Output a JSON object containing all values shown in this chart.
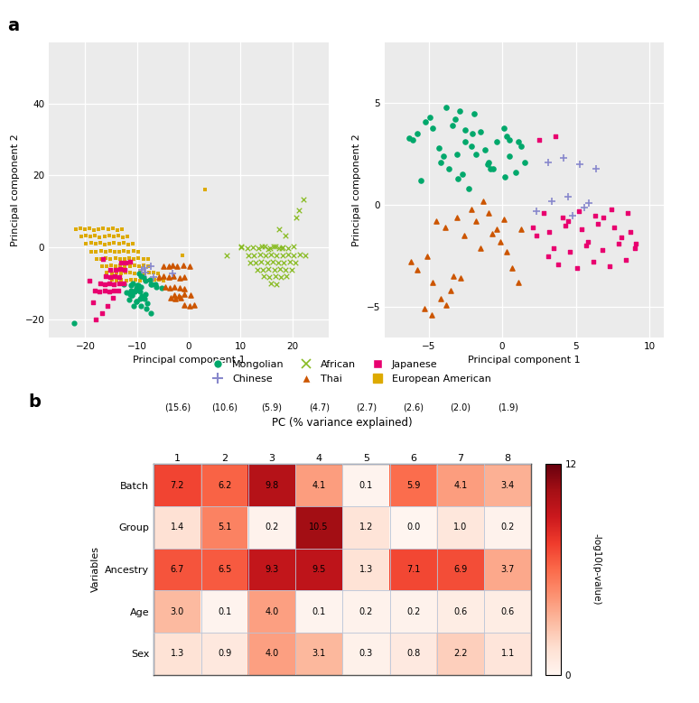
{
  "panel_a_left": {
    "mongolian": {
      "x": [
        -12.5,
        -11.2,
        -10.8,
        -10.1,
        -9.7,
        -9.2,
        -10.5,
        -11.3,
        -12.1,
        -11.0,
        -10.3,
        -9.1,
        -8.5,
        -10.2,
        -9.4,
        -8.1,
        -10.7,
        -11.5,
        -10.1,
        -9.3,
        -8.2,
        -7.4,
        -10.9,
        -11.1,
        -10.0,
        -9.5,
        -8.3,
        -7.1,
        -9.2,
        -8.4,
        -7.3,
        -6.2,
        -9.6,
        -8.7,
        -7.5,
        -6.4,
        -5.3,
        -22.1,
        -10.0,
        -9.1
      ],
      "y": [
        -10.2,
        -10.5,
        -10.1,
        -11.3,
        -10.4,
        -11.1,
        -12.2,
        -13.1,
        -12.4,
        -13.2,
        -12.1,
        -13.4,
        -14.2,
        -15.1,
        -14.3,
        -15.4,
        -16.2,
        -14.5,
        -15.1,
        -16.3,
        -17.1,
        -18.2,
        -13.2,
        -12.1,
        -11.4,
        -12.3,
        -13.1,
        -10.2,
        -8.1,
        -9.3,
        -10.2,
        -11.1,
        -7.2,
        -8.3,
        -9.1,
        -10.3,
        -11.2,
        -21.0,
        -10.4,
        -14.1
      ]
    },
    "thai": {
      "x": [
        -4.8,
        -3.9,
        -3.1,
        -2.2,
        -1.1,
        0.1,
        -5.7,
        -4.9,
        -3.8,
        -2.9,
        -1.8,
        -0.9,
        -4.6,
        -3.7,
        -2.8,
        -1.7,
        -0.8,
        -3.5,
        -2.6,
        -1.5,
        -2.8,
        -1.9,
        -0.8,
        0.3,
        -0.9,
        0.2,
        1.1
      ],
      "y": [
        -5.1,
        -5.3,
        -5.0,
        -5.2,
        -4.9,
        -5.1,
        -8.2,
        -8.0,
        -8.3,
        -8.1,
        -8.4,
        -8.2,
        -11.1,
        -11.3,
        -11.0,
        -11.2,
        -11.4,
        -14.1,
        -14.3,
        -14.0,
        -13.2,
        -13.4,
        -13.1,
        -13.3,
        -16.1,
        -16.3,
        -16.0
      ]
    },
    "japanese": {
      "x": [
        -18.1,
        -17.2,
        -16.3,
        -15.4,
        -14.5,
        -13.6,
        -17.1,
        -16.2,
        -15.3,
        -14.4,
        -13.5,
        -12.6,
        -16.1,
        -15.2,
        -14.3,
        -13.4,
        -15.1,
        -14.2,
        -13.3,
        -12.4,
        -13.1,
        -12.2,
        -11.3,
        -14.6,
        -15.7,
        -16.8,
        -17.9,
        -18.5,
        -16.5,
        -19.2
      ],
      "y": [
        -12.1,
        -12.3,
        -12.0,
        -12.2,
        -11.9,
        -12.1,
        -10.1,
        -10.3,
        -10.0,
        -10.2,
        -9.9,
        -10.1,
        -8.1,
        -8.3,
        -8.0,
        -8.2,
        -6.1,
        -6.3,
        -6.0,
        -6.2,
        -4.1,
        -4.3,
        -4.0,
        -14.1,
        -16.2,
        -18.3,
        -20.1,
        -15.2,
        -3.1,
        -9.2
      ]
    },
    "chinese": {
      "x": [
        -9.1,
        -8.3,
        -3.2,
        -7.4,
        -6.8,
        -8.5
      ],
      "y": [
        -6.2,
        -7.1,
        -7.3,
        -5.1,
        -8.2,
        -5.8
      ]
    },
    "african": {
      "x": [
        10.2,
        11.3,
        12.4,
        13.5,
        14.6,
        15.7,
        16.8,
        17.9,
        18.1,
        19.2,
        20.3,
        11.5,
        12.6,
        13.7,
        14.8,
        15.9,
        17.0,
        18.1,
        19.2,
        20.3,
        21.4,
        22.5,
        11.8,
        12.9,
        14.0,
        15.1,
        16.2,
        17.3,
        18.4,
        19.5,
        20.6,
        13.2,
        14.3,
        15.4,
        16.5,
        17.6,
        18.7,
        19.8,
        14.5,
        15.6,
        16.7,
        17.8,
        18.9,
        15.8,
        16.9,
        7.3,
        18.6,
        17.4,
        20.8,
        21.2,
        10.1,
        22.1,
        14.2,
        15.3,
        16.4,
        17.5
      ],
      "y": [
        0.2,
        -0.3,
        0.1,
        -0.2,
        0.3,
        -0.1,
        0.2,
        -0.3,
        0.1,
        -0.2,
        0.3,
        -2.1,
        -2.3,
        -2.0,
        -2.2,
        -1.9,
        -2.1,
        -2.3,
        -2.0,
        -2.2,
        -1.9,
        -2.1,
        -4.1,
        -4.3,
        -4.0,
        -4.2,
        -3.9,
        -4.1,
        -4.3,
        -4.0,
        -4.2,
        -6.1,
        -6.3,
        -6.0,
        -6.2,
        -5.9,
        -6.1,
        -6.3,
        -8.1,
        -8.3,
        -8.0,
        -8.2,
        -7.9,
        -10.1,
        -10.3,
        -2.1,
        3.2,
        5.1,
        8.3,
        10.2,
        0.1,
        13.4,
        0.4,
        -0.5,
        0.2,
        -0.3
      ]
    },
    "european": {
      "x": [
        -21.8,
        -20.9,
        -20.1,
        -19.2,
        -18.3,
        -17.4,
        -16.5,
        -15.6,
        -14.7,
        -13.8,
        -12.9,
        -20.8,
        -19.9,
        -19.0,
        -18.1,
        -17.2,
        -16.3,
        -15.4,
        -14.5,
        -13.6,
        -12.7,
        -11.8,
        -19.8,
        -18.9,
        -18.0,
        -17.1,
        -16.2,
        -15.3,
        -14.4,
        -13.5,
        -12.6,
        -11.7,
        -10.8,
        -18.8,
        -17.9,
        -17.0,
        -16.1,
        -15.2,
        -14.3,
        -13.4,
        -12.5,
        -11.6,
        -10.7,
        -9.8,
        -17.8,
        -16.9,
        -16.0,
        -15.1,
        -14.2,
        -13.3,
        -12.4,
        -11.5,
        -10.6,
        -9.7,
        -8.8,
        -7.9,
        -16.8,
        -15.9,
        -15.0,
        -14.1,
        -13.2,
        -12.3,
        -11.4,
        -10.5,
        -9.6,
        -8.7,
        -7.8,
        -15.8,
        -14.9,
        -14.0,
        -13.1,
        -12.2,
        -11.3,
        -10.4,
        -9.5,
        -8.6,
        -7.7,
        -6.8,
        -5.9,
        -14.8,
        -13.9,
        -13.0,
        -12.1,
        -11.2,
        -10.3,
        -9.4,
        -8.5,
        -7.6,
        -6.7,
        -5.8,
        -4.9,
        3.1,
        -1.2
      ],
      "y": [
        5.1,
        5.3,
        5.0,
        5.2,
        4.9,
        5.1,
        5.3,
        5.0,
        5.2,
        4.9,
        5.1,
        3.1,
        3.3,
        3.0,
        3.2,
        2.9,
        3.1,
        3.3,
        3.0,
        3.2,
        2.9,
        3.1,
        1.1,
        1.3,
        1.0,
        1.2,
        0.9,
        1.1,
        1.3,
        1.0,
        1.2,
        0.9,
        1.1,
        -1.1,
        -1.3,
        -1.0,
        -1.2,
        -0.9,
        -1.1,
        -1.3,
        -1.0,
        -1.2,
        -0.9,
        -1.1,
        -3.1,
        -3.3,
        -3.0,
        -3.2,
        -2.9,
        -3.1,
        -3.3,
        -3.0,
        -3.2,
        -2.9,
        -3.1,
        -3.3,
        -5.1,
        -5.3,
        -5.0,
        -5.2,
        -4.9,
        -5.1,
        -5.3,
        -5.0,
        -5.2,
        -4.9,
        -5.1,
        -7.1,
        -7.3,
        -7.0,
        -7.2,
        -6.9,
        -7.1,
        -7.3,
        -7.0,
        -7.2,
        -6.9,
        -7.1,
        -7.3,
        -9.1,
        -9.3,
        -9.0,
        -9.2,
        -8.9,
        -9.1,
        -9.3,
        -9.0,
        -9.2,
        -8.9,
        -9.1,
        -9.3,
        16.2,
        -2.1
      ]
    }
  },
  "panel_a_right": {
    "mongolian": {
      "x": [
        -6.1,
        -5.8,
        -5.2,
        -4.9,
        -4.3,
        -4.7,
        -3.8,
        -3.4,
        -3.1,
        -3.6,
        -2.9,
        -2.5,
        -2.1,
        -2.7,
        -2.3,
        -1.9,
        -1.5,
        -1.2,
        -0.8,
        -0.4,
        0.1,
        0.5,
        0.9,
        1.3,
        -4.2,
        -3.0,
        -1.8,
        -0.6,
        0.5,
        -5.5,
        -4.0,
        -2.5,
        -1.0,
        0.3,
        1.5,
        -3.2,
        -2.0,
        -0.9,
        0.2,
        1.1,
        -6.3
      ],
      "y": [
        3.2,
        3.5,
        4.1,
        4.3,
        2.8,
        3.8,
        4.8,
        3.9,
        2.5,
        1.8,
        4.6,
        3.7,
        2.9,
        1.5,
        0.8,
        4.5,
        3.6,
        2.7,
        1.8,
        3.1,
        3.8,
        2.4,
        1.6,
        2.9,
        2.1,
        1.3,
        2.5,
        1.8,
        3.2,
        1.2,
        2.4,
        3.1,
        2.0,
        3.4,
        2.1,
        4.2,
        3.5,
        2.1,
        1.4,
        3.1,
        3.3
      ]
    },
    "thai": {
      "x": [
        -6.2,
        -5.8,
        -5.1,
        -4.7,
        -4.2,
        -3.8,
        -3.3,
        -4.5,
        -3.9,
        -3.1,
        -2.6,
        -2.1,
        -1.8,
        -1.3,
        -0.9,
        -0.4,
        -0.1,
        0.3,
        0.7,
        1.1,
        -5.3,
        -4.8,
        -3.5,
        -2.8,
        -1.5,
        -0.7,
        0.1,
        1.3
      ],
      "y": [
        -2.8,
        -3.2,
        -2.5,
        -3.8,
        -4.6,
        -4.9,
        -3.5,
        -0.8,
        -1.1,
        -0.6,
        -1.5,
        -0.2,
        -0.8,
        0.2,
        -0.4,
        -1.2,
        -1.8,
        -2.3,
        -3.1,
        -3.8,
        -5.1,
        -5.4,
        -4.2,
        -3.6,
        -2.1,
        -1.4,
        -0.7,
        -1.2
      ]
    },
    "japanese": {
      "x": [
        2.1,
        3.2,
        4.3,
        5.4,
        6.5,
        7.6,
        8.7,
        3.5,
        4.6,
        5.7,
        6.8,
        7.9,
        9.0,
        2.8,
        4.1,
        5.2,
        6.3,
        7.4,
        8.5,
        3.8,
        5.1,
        6.2,
        7.3,
        8.4,
        2.5,
        3.6,
        2.3,
        3.1,
        4.5,
        5.8,
        6.9,
        8.1,
        9.1
      ],
      "y": [
        -1.1,
        -1.3,
        -1.0,
        -1.2,
        -0.9,
        -1.1,
        -1.3,
        -2.1,
        -2.3,
        -2.0,
        -2.2,
        -1.9,
        -2.1,
        -0.4,
        -0.6,
        -0.3,
        -0.5,
        -0.2,
        -0.4,
        -2.9,
        -3.1,
        -2.8,
        -3.0,
        -2.7,
        3.2,
        3.4,
        -1.5,
        -2.5,
        -0.8,
        -1.8,
        -0.6,
        -1.6,
        -1.9
      ]
    },
    "chinese": {
      "x": [
        2.3,
        3.4,
        4.5,
        5.6,
        3.1,
        4.2,
        5.3,
        6.4,
        4.8,
        5.9
      ],
      "y": [
        -0.3,
        0.2,
        0.4,
        -0.1,
        2.1,
        2.3,
        2.0,
        1.8,
        -0.5,
        0.1
      ]
    }
  },
  "heatmap": {
    "rows": [
      "Batch",
      "Group",
      "Ancestry",
      "Age",
      "Sex"
    ],
    "col_top": [
      "1",
      "2",
      "3",
      "4",
      "5",
      "6",
      "7",
      "8"
    ],
    "col_bot": [
      "(15.6)",
      "(10.6)",
      "(5.9)",
      "(4.7)",
      "(2.7)",
      "(2.6)",
      "(2.0)",
      "(1.9)"
    ],
    "data": [
      [
        7.2,
        6.2,
        9.8,
        4.1,
        0.1,
        5.9,
        4.1,
        3.4
      ],
      [
        1.4,
        5.1,
        0.2,
        10.5,
        1.2,
        0.0,
        1.0,
        0.2
      ],
      [
        6.7,
        6.5,
        9.3,
        9.5,
        1.3,
        7.1,
        6.9,
        3.7
      ],
      [
        3.0,
        0.1,
        4.0,
        0.1,
        0.2,
        0.2,
        0.6,
        0.6
      ],
      [
        1.3,
        0.9,
        4.0,
        3.1,
        0.3,
        0.8,
        2.2,
        1.1
      ]
    ],
    "vmin": 0,
    "vmax": 12,
    "colormap": "Reds"
  },
  "colors": {
    "mongolian": "#00a86b",
    "thai": "#cc5500",
    "japanese": "#e8006f",
    "chinese": "#8888cc",
    "african": "#88bb22",
    "european": "#ddaa00"
  },
  "bg_color": "#ebebeb",
  "legend": {
    "row1": [
      "Mongolian",
      "Chinese",
      "African"
    ],
    "row2": [
      "Thai",
      "Japanese",
      "European American"
    ]
  }
}
